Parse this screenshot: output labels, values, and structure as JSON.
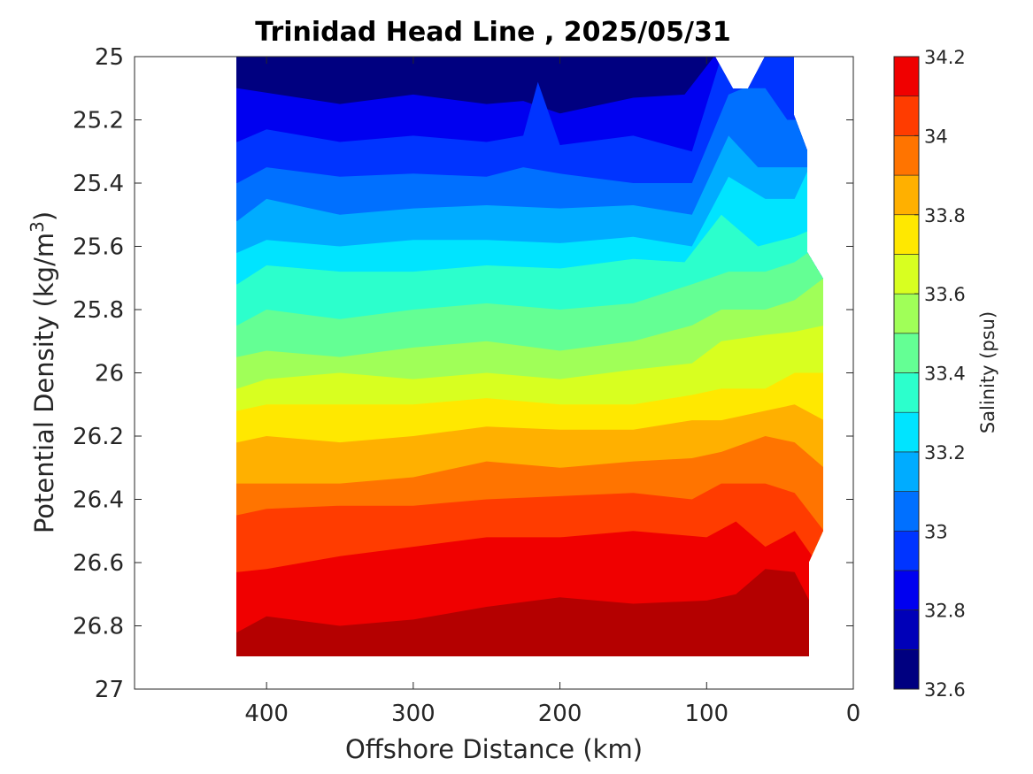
{
  "chart_data": {
    "type": "contour",
    "title": "Trinidad Head Line , 2025/05/31",
    "xlabel": "Offshore Distance (km)",
    "ylabel_main": "Potential Density (kg/m",
    "ylabel_sup": "3",
    "ylabel_close": ")",
    "colorbar_label": "Salinity (psu)",
    "xlim": [
      490,
      0
    ],
    "ylim": [
      25,
      27
    ],
    "y_reversed": true,
    "x_reversed": true,
    "xticks": [
      400,
      300,
      200,
      100,
      0
    ],
    "yticks": [
      25,
      25.2,
      25.4,
      25.6,
      25.8,
      26,
      26.2,
      26.4,
      26.6,
      26.8,
      27
    ],
    "ytick_labels": [
      "25",
      "25.2",
      "25.4",
      "25.6",
      "25.8",
      "26",
      "26.2",
      "26.4",
      "26.6",
      "26.8",
      "27"
    ],
    "colorbar_range": [
      32.6,
      34.2
    ],
    "colorbar_ticks": [
      32.6,
      32.8,
      33,
      33.2,
      33.4,
      33.6,
      33.8,
      34,
      34.2
    ],
    "colorbar_tick_labels": [
      "32.6",
      "32.8",
      "33",
      "33.2",
      "33.4",
      "33.6",
      "33.8",
      "34",
      "34.2"
    ],
    "levels": [
      32.6,
      32.7,
      32.8,
      32.9,
      33.0,
      33.1,
      33.2,
      33.3,
      33.4,
      33.5,
      33.6,
      33.7,
      33.8,
      33.9,
      34.0,
      34.1,
      34.2
    ],
    "level_colors": [
      "#000080",
      "#0000b8",
      "#0000f0",
      "#0034ff",
      "#0070ff",
      "#00acff",
      "#00e4ff",
      "#2cffcc",
      "#64ff94",
      "#a0ff58",
      "#d8ff20",
      "#ffe800",
      "#ffb000",
      "#ff7400",
      "#ff3c00",
      "#f00000",
      "#b40000"
    ],
    "data_extent_x": [
      420,
      20
    ],
    "data_extent_y": [
      25,
      26.9
    ],
    "isohalines": [
      {
        "salinity": 32.7,
        "x": [
          420,
          350,
          300,
          250,
          225,
          200,
          150,
          115,
          95
        ],
        "y": [
          25.1,
          25.15,
          25.12,
          25.15,
          25.14,
          25.18,
          25.13,
          25.12,
          25.0
        ]
      },
      {
        "salinity": 32.8,
        "x": [
          420,
          400,
          350,
          300,
          250,
          225,
          215,
          200,
          150,
          110,
          90
        ],
        "y": [
          25.27,
          25.23,
          25.27,
          25.25,
          25.27,
          25.25,
          25.08,
          25.28,
          25.25,
          25.3,
          25.0
        ]
      },
      {
        "salinity": 32.9,
        "x": [
          420,
          400,
          350,
          300,
          250,
          225,
          200,
          150,
          110,
          85,
          75,
          60,
          45
        ],
        "y": [
          25.4,
          25.35,
          25.38,
          25.37,
          25.38,
          25.35,
          25.37,
          25.4,
          25.4,
          25.12,
          25.1,
          25.1,
          25.2
        ]
      },
      {
        "salinity": 33.0,
        "x": [
          420,
          400,
          350,
          300,
          250,
          200,
          150,
          110,
          85,
          65,
          40
        ],
        "y": [
          25.52,
          25.45,
          25.5,
          25.48,
          25.47,
          25.48,
          25.47,
          25.5,
          25.25,
          25.35,
          25.35
        ]
      },
      {
        "salinity": 33.1,
        "x": [
          420,
          400,
          350,
          300,
          250,
          200,
          150,
          110,
          85,
          60,
          40,
          30
        ],
        "y": [
          25.62,
          25.58,
          25.6,
          25.58,
          25.58,
          25.59,
          25.57,
          25.6,
          25.38,
          25.45,
          25.45,
          25.35
        ]
      },
      {
        "salinity": 33.2,
        "x": [
          420,
          400,
          350,
          300,
          250,
          200,
          150,
          115,
          90,
          65,
          40,
          30
        ],
        "y": [
          25.72,
          25.66,
          25.68,
          25.68,
          25.66,
          25.67,
          25.64,
          25.65,
          25.5,
          25.6,
          25.57,
          25.55
        ]
      },
      {
        "salinity": 33.3,
        "x": [
          420,
          400,
          350,
          300,
          250,
          200,
          150,
          110,
          85,
          60,
          40,
          25
        ],
        "y": [
          25.85,
          25.8,
          25.83,
          25.8,
          25.78,
          25.8,
          25.78,
          25.72,
          25.68,
          25.68,
          25.65,
          25.6
        ]
      },
      {
        "salinity": 33.4,
        "x": [
          420,
          400,
          350,
          300,
          250,
          200,
          150,
          110,
          90,
          60,
          40,
          20
        ],
        "y": [
          25.95,
          25.93,
          25.95,
          25.92,
          25.9,
          25.93,
          25.9,
          25.85,
          25.8,
          25.8,
          25.77,
          25.7
        ]
      },
      {
        "salinity": 33.5,
        "x": [
          420,
          400,
          350,
          300,
          250,
          200,
          150,
          110,
          90,
          60,
          40,
          20
        ],
        "y": [
          26.05,
          26.02,
          26.0,
          26.02,
          26.0,
          26.02,
          25.99,
          25.97,
          25.9,
          25.88,
          25.87,
          25.85
        ]
      },
      {
        "salinity": 33.6,
        "x": [
          420,
          400,
          350,
          300,
          250,
          200,
          150,
          110,
          90,
          60,
          40,
          20
        ],
        "y": [
          26.12,
          26.1,
          26.1,
          26.1,
          26.08,
          26.1,
          26.1,
          26.07,
          26.05,
          26.05,
          26.0,
          26.0
        ]
      },
      {
        "salinity": 33.7,
        "x": [
          420,
          400,
          350,
          300,
          250,
          200,
          150,
          110,
          90,
          60,
          40,
          20
        ],
        "y": [
          26.22,
          26.2,
          26.22,
          26.2,
          26.17,
          26.18,
          26.18,
          26.15,
          26.15,
          26.12,
          26.1,
          26.15
        ]
      },
      {
        "salinity": 33.8,
        "x": [
          420,
          400,
          350,
          300,
          250,
          200,
          150,
          110,
          90,
          60,
          40,
          20
        ],
        "y": [
          26.35,
          26.35,
          26.35,
          26.33,
          26.28,
          26.3,
          26.28,
          26.27,
          26.25,
          26.2,
          26.22,
          26.3
        ]
      },
      {
        "salinity": 33.9,
        "x": [
          420,
          400,
          350,
          300,
          250,
          200,
          150,
          110,
          90,
          60,
          40,
          20
        ],
        "y": [
          26.45,
          26.43,
          26.42,
          26.42,
          26.4,
          26.39,
          26.38,
          26.4,
          26.35,
          26.35,
          26.38,
          26.5
        ]
      },
      {
        "salinity": 34.0,
        "x": [
          420,
          400,
          350,
          300,
          250,
          200,
          150,
          100,
          80,
          60,
          40,
          25
        ],
        "y": [
          26.63,
          26.62,
          26.58,
          26.55,
          26.52,
          26.52,
          26.5,
          26.52,
          26.47,
          26.55,
          26.5,
          26.6
        ]
      },
      {
        "salinity": 34.1,
        "x": [
          420,
          400,
          350,
          300,
          250,
          200,
          150,
          100,
          80,
          60,
          40,
          30
        ],
        "y": [
          26.82,
          26.77,
          26.8,
          26.78,
          26.74,
          26.71,
          26.73,
          26.72,
          26.7,
          26.62,
          26.63,
          26.72
        ]
      },
      {
        "salinity": 34.2,
        "x": [
          210,
          190,
          170,
          80,
          60,
          50,
          40,
          30
        ],
        "y": [
          26.9,
          26.87,
          26.9,
          26.9,
          26.72,
          26.68,
          26.78,
          26.85
        ]
      }
    ]
  }
}
